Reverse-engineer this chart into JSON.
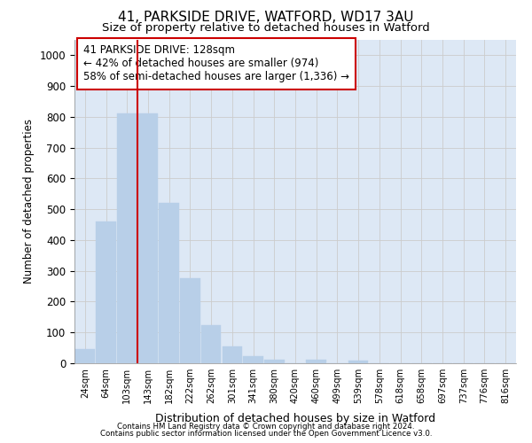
{
  "title_line1": "41, PARKSIDE DRIVE, WATFORD, WD17 3AU",
  "title_line2": "Size of property relative to detached houses in Watford",
  "xlabel": "Distribution of detached houses by size in Watford",
  "ylabel": "Number of detached properties",
  "bar_labels": [
    "24sqm",
    "64sqm",
    "103sqm",
    "143sqm",
    "182sqm",
    "222sqm",
    "262sqm",
    "301sqm",
    "341sqm",
    "380sqm",
    "420sqm",
    "460sqm",
    "499sqm",
    "539sqm",
    "578sqm",
    "618sqm",
    "658sqm",
    "697sqm",
    "737sqm",
    "776sqm",
    "816sqm"
  ],
  "bar_values": [
    46,
    460,
    810,
    810,
    520,
    275,
    125,
    55,
    22,
    11,
    0,
    11,
    0,
    9,
    0,
    0,
    0,
    0,
    0,
    0,
    0
  ],
  "bar_color": "#b8cfe8",
  "bar_edgecolor": "#b8cfe8",
  "vline_color": "#cc0000",
  "vline_position": 2.5,
  "annotation_text": "41 PARKSIDE DRIVE: 128sqm\n← 42% of detached houses are smaller (974)\n58% of semi-detached houses are larger (1,336) →",
  "annotation_box_facecolor": "#ffffff",
  "annotation_box_edgecolor": "#cc0000",
  "ylim": [
    0,
    1050
  ],
  "yticks": [
    0,
    100,
    200,
    300,
    400,
    500,
    600,
    700,
    800,
    900,
    1000
  ],
  "grid_color": "#cccccc",
  "plot_background_color": "#dde8f5",
  "figure_background_color": "#ffffff",
  "footer_line1": "Contains HM Land Registry data © Crown copyright and database right 2024.",
  "footer_line2": "Contains public sector information licensed under the Open Government Licence v3.0."
}
